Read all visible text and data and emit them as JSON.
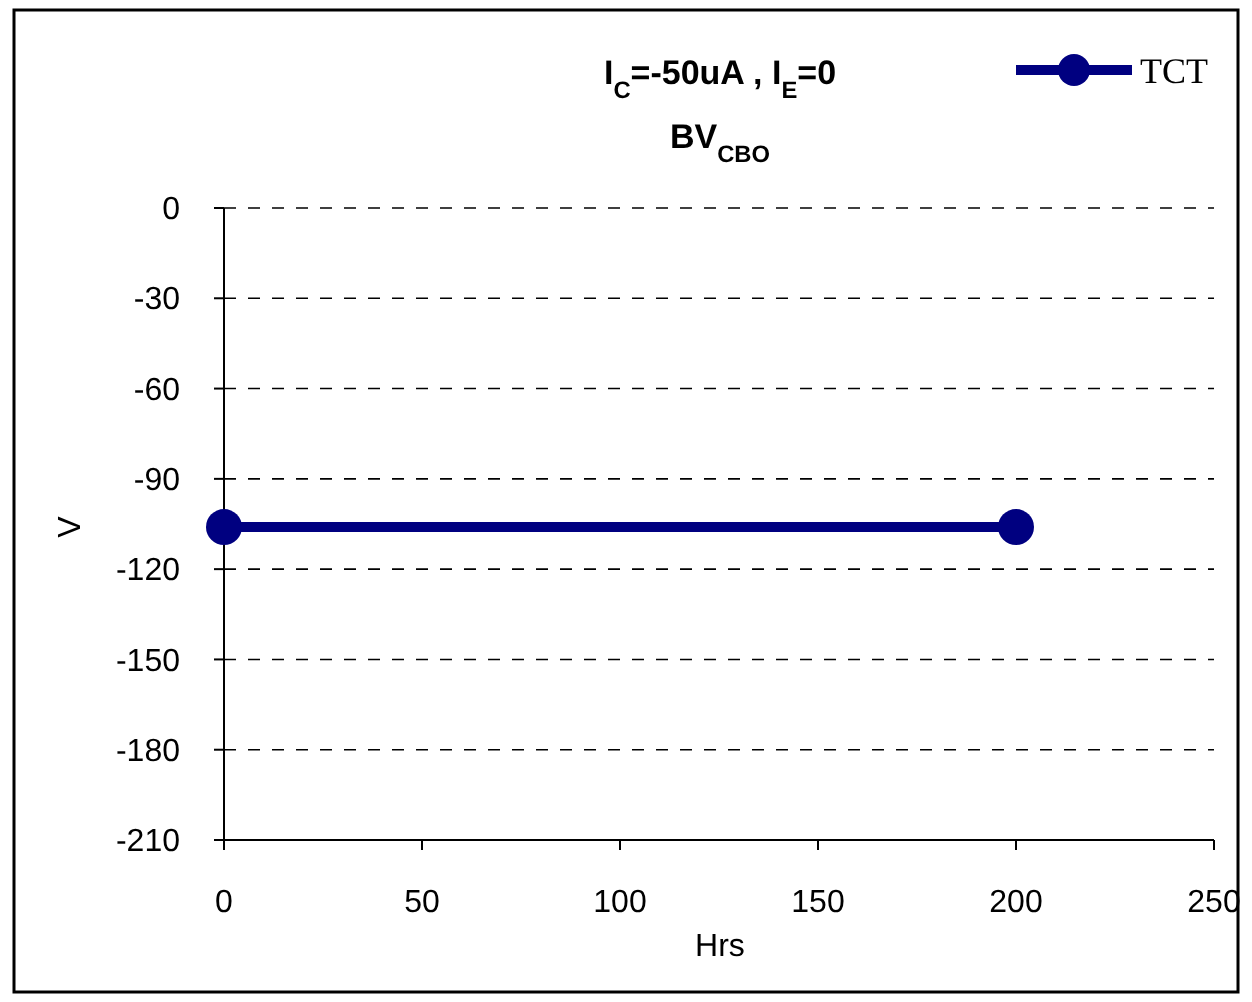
{
  "chart_data": {
    "type": "line",
    "title": "I$_{C}$=-50uA , I$_{E}$=0",
    "subtitle": "BV$_{CBO}$",
    "xlabel": "Hrs",
    "ylabel": "V",
    "x": [
      0,
      200
    ],
    "series": [
      {
        "name": "TCT",
        "color": "#000080",
        "values": [
          -106,
          -106
        ]
      }
    ],
    "xlim": [
      0,
      250
    ],
    "xticks": [
      0,
      50,
      100,
      150,
      200,
      250
    ],
    "ylim": [
      -210,
      0
    ],
    "yticks": [
      0,
      -30,
      -60,
      -90,
      -120,
      -150,
      -180,
      -210
    ],
    "grid": "y",
    "legend": "top right",
    "marker": "circle",
    "line_style": "solid"
  }
}
